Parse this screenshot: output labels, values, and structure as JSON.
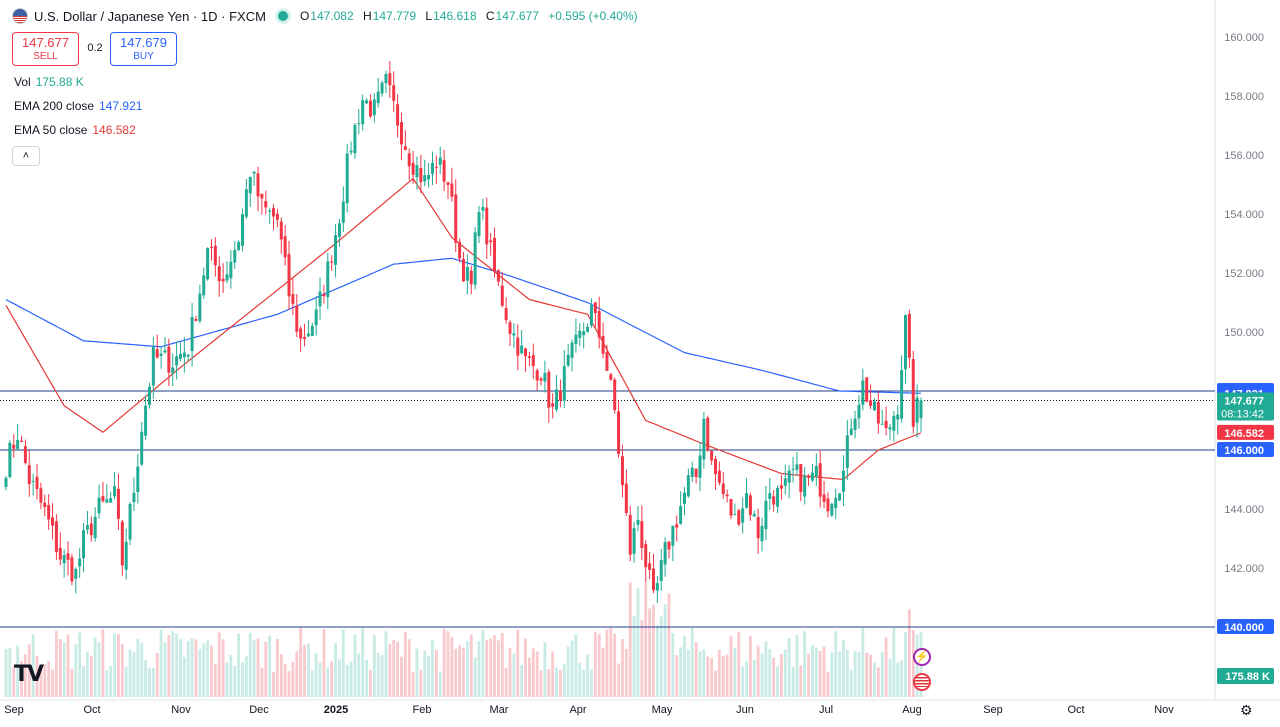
{
  "header": {
    "title": "U.S. Dollar / Japanese Yen · 1D · FXCM",
    "ohlc": [
      {
        "k": "O",
        "v": "147.082"
      },
      {
        "k": "H",
        "v": "147.779"
      },
      {
        "k": "L",
        "v": "146.618"
      },
      {
        "k": "C",
        "v": "147.677"
      },
      {
        "k": "",
        "v": "+0.595 (+0.40%)"
      }
    ]
  },
  "trade": {
    "sell_price": "147.677",
    "sell_label": "SELL",
    "spread": "0.2",
    "buy_price": "147.679",
    "buy_label": "BUY"
  },
  "indicators": {
    "vol_label": "Vol",
    "vol_value": "175.88 K",
    "ema200_label": "EMA 200 close",
    "ema200_value": "147.921",
    "ema50_label": "EMA 50 close",
    "ema50_value": "146.582"
  },
  "icons": {
    "collapse": "chevron-up-icon",
    "logo": "tradingview-logo",
    "event1": "lightning-icon",
    "event2": "us-flag-icon",
    "settings": "gear-icon"
  },
  "colors": {
    "up": "#22ab94",
    "down": "#f23645",
    "ema200": "#2962ff",
    "ema50": "#e53935",
    "hline": "#1f3e8f"
  },
  "chart_data": {
    "type": "candlestick",
    "symbol": "USDJPY",
    "timeframe": "1D",
    "ylim": [
      139.8,
      160.4
    ],
    "y_ticks": [
      "160.000",
      "158.000",
      "156.000",
      "154.000",
      "152.000",
      "150.000",
      "148.000",
      "146.000",
      "144.000",
      "142.000",
      "140.000"
    ],
    "x_labels": [
      "Sep",
      "Oct",
      "Nov",
      "Dec",
      "2025",
      "Feb",
      "Mar",
      "Apr",
      "May",
      "Jun",
      "Jul",
      "Aug",
      "Sep",
      "Oct",
      "Nov"
    ],
    "horizontal_lines": [
      148.0,
      146.0,
      140.0
    ],
    "price_labels": [
      {
        "text": "148.000",
        "value": 148.0,
        "color": "#2962ff"
      },
      {
        "text": "147.921",
        "value": 147.921,
        "color": "#2962ff"
      },
      {
        "text": "147.677",
        "sub": "08:13:42",
        "value": 147.677,
        "color": "#22ab94"
      },
      {
        "text": "146.582",
        "value": 146.582,
        "color": "#f23645"
      },
      {
        "text": "146.000",
        "value": 146.0,
        "color": "#2962ff"
      },
      {
        "text": "140.000",
        "value": 140.0,
        "color": "#2962ff"
      }
    ],
    "volume_label": "175.88 K",
    "close_anchors": [
      [
        0,
        145.5
      ],
      [
        3,
        146.6
      ],
      [
        6,
        145.0
      ],
      [
        10,
        143.9
      ],
      [
        14,
        142.4
      ],
      [
        18,
        141.8
      ],
      [
        20,
        142.9
      ],
      [
        24,
        144.0
      ],
      [
        28,
        144.4
      ],
      [
        30,
        142.2
      ],
      [
        33,
        144.7
      ],
      [
        35,
        146.8
      ],
      [
        38,
        149.1
      ],
      [
        43,
        149.0
      ],
      [
        47,
        149.5
      ],
      [
        52,
        152.7
      ],
      [
        56,
        151.8
      ],
      [
        60,
        153.2
      ],
      [
        63,
        155.5
      ],
      [
        66,
        154.2
      ],
      [
        70,
        153.8
      ],
      [
        73,
        151.3
      ],
      [
        76,
        149.7
      ],
      [
        80,
        150.5
      ],
      [
        83,
        152.1
      ],
      [
        86,
        154.0
      ],
      [
        89,
        156.4
      ],
      [
        92,
        157.9
      ],
      [
        95,
        157.5
      ],
      [
        98,
        158.4
      ],
      [
        101,
        157.2
      ],
      [
        104,
        156.0
      ],
      [
        108,
        155.1
      ],
      [
        111,
        155.8
      ],
      [
        114,
        155.1
      ],
      [
        117,
        152.5
      ],
      [
        120,
        151.5
      ],
      [
        122,
        154.5
      ],
      [
        126,
        152.0
      ],
      [
        130,
        150.2
      ],
      [
        134,
        149.0
      ],
      [
        138,
        148.7
      ],
      [
        141,
        147.3
      ],
      [
        145,
        148.9
      ],
      [
        148,
        149.8
      ],
      [
        151,
        150.7
      ],
      [
        154,
        149.5
      ],
      [
        157,
        147.3
      ],
      [
        159,
        144.7
      ],
      [
        161,
        142.6
      ],
      [
        163,
        143.7
      ],
      [
        165,
        142.2
      ],
      [
        167,
        140.8
      ],
      [
        170,
        142.5
      ],
      [
        173,
        143.7
      ],
      [
        176,
        144.9
      ],
      [
        178,
        145.1
      ],
      [
        180,
        147.1
      ],
      [
        182,
        145.5
      ],
      [
        185,
        144.5
      ],
      [
        188,
        143.6
      ],
      [
        191,
        144.5
      ],
      [
        194,
        143.2
      ],
      [
        197,
        144.6
      ],
      [
        200,
        144.4
      ],
      [
        203,
        145.2
      ],
      [
        206,
        144.9
      ],
      [
        209,
        145.1
      ],
      [
        212,
        144.3
      ],
      [
        216,
        145.2
      ],
      [
        218,
        147.0
      ],
      [
        221,
        148.2
      ],
      [
        224,
        147.2
      ],
      [
        227,
        146.5
      ],
      [
        230,
        147.6
      ],
      [
        232,
        150.3
      ],
      [
        234,
        147.1
      ],
      [
        236,
        147.677
      ]
    ],
    "ema200_anchors": [
      [
        0,
        151.1
      ],
      [
        20,
        149.7
      ],
      [
        40,
        149.5
      ],
      [
        70,
        150.6
      ],
      [
        100,
        152.3
      ],
      [
        115,
        152.5
      ],
      [
        130,
        151.9
      ],
      [
        150,
        151.0
      ],
      [
        175,
        149.3
      ],
      [
        195,
        148.7
      ],
      [
        215,
        148.0
      ],
      [
        236,
        147.921
      ]
    ],
    "ema50_anchors": [
      [
        0,
        150.9
      ],
      [
        15,
        147.5
      ],
      [
        25,
        146.6
      ],
      [
        45,
        148.8
      ],
      [
        65,
        150.9
      ],
      [
        85,
        153.0
      ],
      [
        105,
        155.2
      ],
      [
        115,
        153.2
      ],
      [
        135,
        151.1
      ],
      [
        150,
        150.6
      ],
      [
        165,
        147.0
      ],
      [
        180,
        146.2
      ],
      [
        200,
        145.2
      ],
      [
        216,
        145.0
      ],
      [
        225,
        146.0
      ],
      [
        236,
        146.582
      ]
    ]
  }
}
